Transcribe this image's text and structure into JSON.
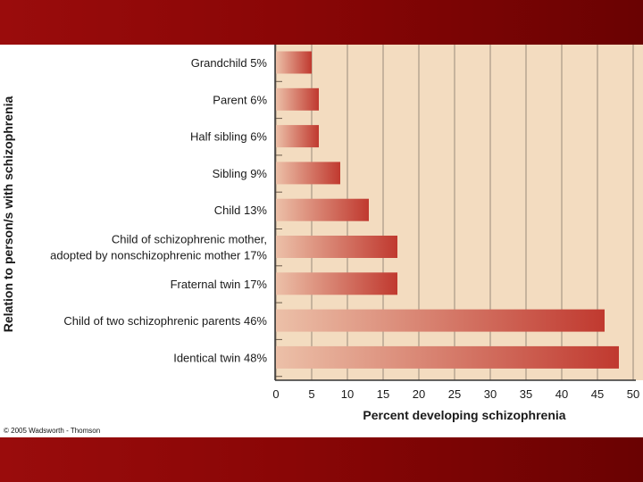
{
  "copyright": "© 2005 Wadsworth - Thomson",
  "colors": {
    "band": "#8a0606",
    "plot_background": "#f3dcc0",
    "bar_dark": "#c0392f",
    "bar_light": "#ecc0a8"
  },
  "chart_data": {
    "type": "bar",
    "orientation": "horizontal",
    "title": "",
    "xlabel": "Percent developing schizophrenia",
    "ylabel": "Relation to person/s with schizophrenia",
    "xlim": [
      0,
      50
    ],
    "xticks": [
      0,
      5,
      10,
      15,
      20,
      25,
      30,
      35,
      40,
      45,
      50
    ],
    "grid": true,
    "categories": [
      [
        "Grandchild 5%"
      ],
      [
        "Parent 6%"
      ],
      [
        "Half sibling 6%"
      ],
      [
        "Sibling 9%"
      ],
      [
        "Child 13%"
      ],
      [
        "Child of schizophrenic mother,",
        "adopted by nonschizophrenic mother 17%"
      ],
      [
        "Fraternal twin 17%"
      ],
      [
        "Child of two schizophrenic parents 46%"
      ],
      [
        "Identical twin 48%"
      ]
    ],
    "values": [
      5,
      6,
      6,
      9,
      13,
      17,
      17,
      46,
      48
    ]
  }
}
